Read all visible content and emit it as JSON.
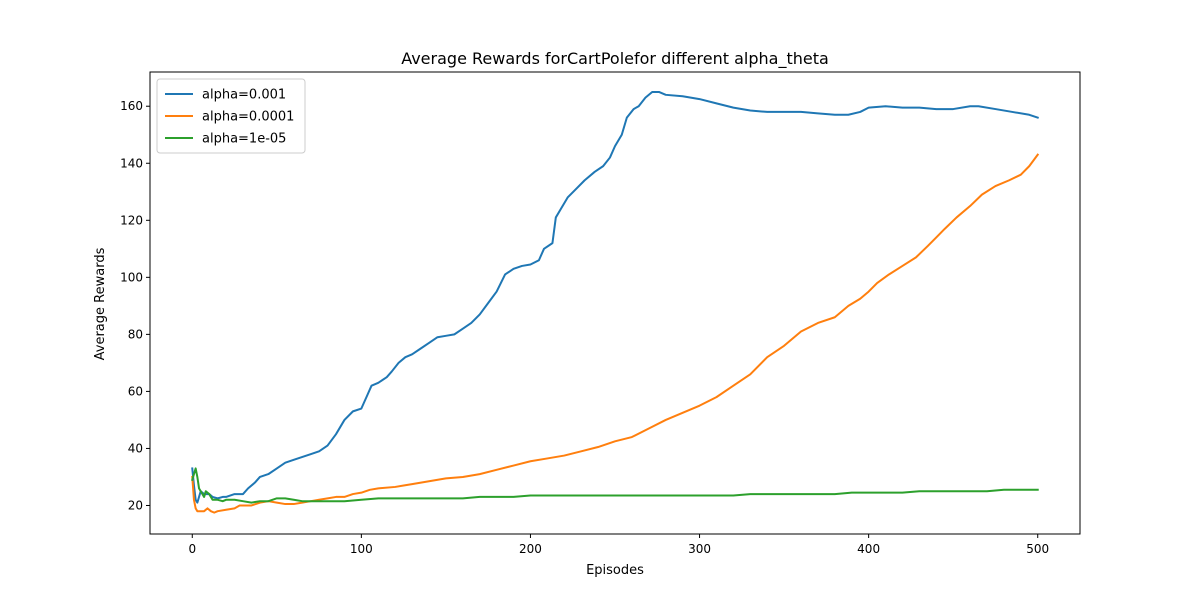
{
  "chart_data": {
    "type": "line",
    "title": "Average Rewards forCartPolefor different alpha_theta",
    "xlabel": "Episodes",
    "ylabel": "Average Rewards",
    "xlim": [
      -25,
      525
    ],
    "ylim": [
      10,
      172
    ],
    "xticks": [
      0,
      100,
      200,
      300,
      400,
      500
    ],
    "yticks": [
      20,
      40,
      60,
      80,
      100,
      120,
      140,
      160
    ],
    "grid": false,
    "legend_position": "upper-left",
    "series": [
      {
        "name": "alpha=0.001",
        "color": "#1f77b4",
        "points": [
          [
            0,
            33
          ],
          [
            1,
            27
          ],
          [
            2,
            22
          ],
          [
            3,
            21
          ],
          [
            5,
            25
          ],
          [
            7,
            24
          ],
          [
            10,
            24
          ],
          [
            12,
            23
          ],
          [
            15,
            22.5
          ],
          [
            18,
            23
          ],
          [
            20,
            23
          ],
          [
            25,
            24
          ],
          [
            30,
            24
          ],
          [
            33,
            26
          ],
          [
            37,
            28
          ],
          [
            40,
            30
          ],
          [
            45,
            31
          ],
          [
            50,
            33
          ],
          [
            55,
            35
          ],
          [
            60,
            36
          ],
          [
            70,
            38
          ],
          [
            75,
            39
          ],
          [
            80,
            41
          ],
          [
            85,
            45
          ],
          [
            90,
            50
          ],
          [
            95,
            53
          ],
          [
            100,
            54
          ],
          [
            103,
            58
          ],
          [
            106,
            62
          ],
          [
            110,
            63
          ],
          [
            115,
            65
          ],
          [
            118,
            67
          ],
          [
            122,
            70
          ],
          [
            126,
            72
          ],
          [
            130,
            73
          ],
          [
            135,
            75
          ],
          [
            140,
            77
          ],
          [
            145,
            79
          ],
          [
            150,
            79.5
          ],
          [
            155,
            80
          ],
          [
            160,
            82
          ],
          [
            165,
            84
          ],
          [
            170,
            87
          ],
          [
            175,
            91
          ],
          [
            180,
            95
          ],
          [
            185,
            101
          ],
          [
            190,
            103
          ],
          [
            195,
            104
          ],
          [
            200,
            104.5
          ],
          [
            205,
            106
          ],
          [
            208,
            110
          ],
          [
            213,
            112
          ],
          [
            215,
            121
          ],
          [
            218,
            124
          ],
          [
            222,
            128
          ],
          [
            227,
            131
          ],
          [
            232,
            134
          ],
          [
            238,
            137
          ],
          [
            243,
            139
          ],
          [
            247,
            142
          ],
          [
            250,
            146
          ],
          [
            254,
            150
          ],
          [
            257,
            156
          ],
          [
            261,
            159
          ],
          [
            264,
            160
          ],
          [
            268,
            163
          ],
          [
            272,
            165
          ],
          [
            276,
            165
          ],
          [
            280,
            164
          ],
          [
            290,
            163.5
          ],
          [
            300,
            162.5
          ],
          [
            310,
            161
          ],
          [
            320,
            159.5
          ],
          [
            330,
            158.5
          ],
          [
            340,
            158
          ],
          [
            350,
            158
          ],
          [
            360,
            158
          ],
          [
            370,
            157.5
          ],
          [
            380,
            157
          ],
          [
            388,
            157
          ],
          [
            395,
            158
          ],
          [
            400,
            159.5
          ],
          [
            410,
            160
          ],
          [
            420,
            159.5
          ],
          [
            430,
            159.5
          ],
          [
            440,
            159
          ],
          [
            450,
            159
          ],
          [
            460,
            160
          ],
          [
            465,
            160
          ],
          [
            475,
            159
          ],
          [
            485,
            158
          ],
          [
            495,
            157
          ],
          [
            500,
            156
          ]
        ]
      },
      {
        "name": "alpha=0.0001",
        "color": "#ff7f0e",
        "points": [
          [
            0,
            30
          ],
          [
            1,
            22
          ],
          [
            2,
            19
          ],
          [
            3,
            18
          ],
          [
            5,
            18
          ],
          [
            7,
            18
          ],
          [
            9,
            19
          ],
          [
            11,
            18
          ],
          [
            13,
            17.5
          ],
          [
            15,
            18
          ],
          [
            20,
            18.5
          ],
          [
            25,
            19
          ],
          [
            28,
            20
          ],
          [
            35,
            20
          ],
          [
            40,
            21
          ],
          [
            45,
            21.5
          ],
          [
            50,
            21
          ],
          [
            55,
            20.5
          ],
          [
            60,
            20.5
          ],
          [
            65,
            21
          ],
          [
            70,
            21.5
          ],
          [
            75,
            22
          ],
          [
            80,
            22.5
          ],
          [
            85,
            23
          ],
          [
            90,
            23
          ],
          [
            95,
            24
          ],
          [
            100,
            24.5
          ],
          [
            105,
            25.5
          ],
          [
            110,
            26
          ],
          [
            120,
            26.5
          ],
          [
            125,
            27
          ],
          [
            130,
            27.5
          ],
          [
            140,
            28.5
          ],
          [
            150,
            29.5
          ],
          [
            160,
            30
          ],
          [
            170,
            31
          ],
          [
            180,
            32.5
          ],
          [
            190,
            34
          ],
          [
            200,
            35.5
          ],
          [
            210,
            36.5
          ],
          [
            220,
            37.5
          ],
          [
            230,
            39
          ],
          [
            240,
            40.5
          ],
          [
            250,
            42.5
          ],
          [
            260,
            44
          ],
          [
            270,
            47
          ],
          [
            280,
            50
          ],
          [
            290,
            52.5
          ],
          [
            300,
            55
          ],
          [
            310,
            58
          ],
          [
            320,
            62
          ],
          [
            330,
            66
          ],
          [
            340,
            72
          ],
          [
            350,
            76
          ],
          [
            360,
            81
          ],
          [
            370,
            84
          ],
          [
            380,
            86
          ],
          [
            388,
            90
          ],
          [
            395,
            92.5
          ],
          [
            400,
            95
          ],
          [
            405,
            98
          ],
          [
            412,
            101
          ],
          [
            420,
            104
          ],
          [
            428,
            107
          ],
          [
            435,
            111
          ],
          [
            440,
            114
          ],
          [
            445,
            117
          ],
          [
            452,
            121
          ],
          [
            460,
            125
          ],
          [
            467,
            129
          ],
          [
            475,
            132
          ],
          [
            483,
            134
          ],
          [
            490,
            136
          ],
          [
            495,
            139
          ],
          [
            500,
            143
          ]
        ]
      },
      {
        "name": "alpha=1e-05",
        "color": "#2ca02c",
        "points": [
          [
            0,
            29
          ],
          [
            1,
            31
          ],
          [
            2,
            33
          ],
          [
            3,
            30
          ],
          [
            4,
            26
          ],
          [
            5,
            25
          ],
          [
            6,
            24
          ],
          [
            7,
            23
          ],
          [
            8,
            25
          ],
          [
            10,
            24
          ],
          [
            12,
            22
          ],
          [
            15,
            22
          ],
          [
            18,
            21.5
          ],
          [
            20,
            22
          ],
          [
            25,
            22
          ],
          [
            30,
            21.5
          ],
          [
            35,
            21
          ],
          [
            40,
            21.5
          ],
          [
            45,
            21.5
          ],
          [
            50,
            22.5
          ],
          [
            55,
            22.5
          ],
          [
            60,
            22
          ],
          [
            65,
            21.5
          ],
          [
            70,
            21.5
          ],
          [
            80,
            21.5
          ],
          [
            90,
            21.5
          ],
          [
            100,
            22
          ],
          [
            110,
            22.5
          ],
          [
            120,
            22.5
          ],
          [
            130,
            22.5
          ],
          [
            140,
            22.5
          ],
          [
            150,
            22.5
          ],
          [
            160,
            22.5
          ],
          [
            170,
            23
          ],
          [
            180,
            23
          ],
          [
            190,
            23
          ],
          [
            200,
            23.5
          ],
          [
            210,
            23.5
          ],
          [
            220,
            23.5
          ],
          [
            230,
            23.5
          ],
          [
            240,
            23.5
          ],
          [
            250,
            23.5
          ],
          [
            260,
            23.5
          ],
          [
            270,
            23.5
          ],
          [
            280,
            23.5
          ],
          [
            290,
            23.5
          ],
          [
            300,
            23.5
          ],
          [
            310,
            23.5
          ],
          [
            320,
            23.5
          ],
          [
            330,
            24
          ],
          [
            340,
            24
          ],
          [
            350,
            24
          ],
          [
            360,
            24
          ],
          [
            370,
            24
          ],
          [
            380,
            24
          ],
          [
            390,
            24.5
          ],
          [
            400,
            24.5
          ],
          [
            410,
            24.5
          ],
          [
            420,
            24.5
          ],
          [
            430,
            25
          ],
          [
            440,
            25
          ],
          [
            450,
            25
          ],
          [
            460,
            25
          ],
          [
            470,
            25
          ],
          [
            480,
            25.5
          ],
          [
            490,
            25.5
          ],
          [
            500,
            25.5
          ]
        ]
      }
    ]
  }
}
